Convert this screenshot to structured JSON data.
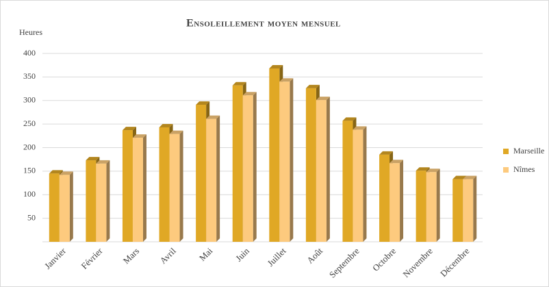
{
  "chart_data": {
    "type": "bar3d",
    "title": "Ensoleillement moyen mensuel",
    "y_label": "Heures",
    "categories": [
      "Janvier",
      "Février",
      "Mars",
      "Avril",
      "Mai",
      "Juin",
      "Juillet",
      "Août",
      "Septembre",
      "Octobre",
      "Novembre",
      "Décembre"
    ],
    "series": [
      {
        "name": "Marseille",
        "color": "#e0a825",
        "values": [
          145,
          173,
          237,
          243,
          291,
          332,
          368,
          326,
          257,
          185,
          151,
          133
        ]
      },
      {
        "name": "Nîmes",
        "color": "#fdca7e",
        "values": [
          142,
          166,
          221,
          229,
          261,
          311,
          340,
          301,
          238,
          167,
          148,
          133
        ]
      }
    ],
    "ylim": [
      0,
      400
    ],
    "yticks": [
      50,
      100,
      150,
      200,
      250,
      300,
      350,
      400
    ],
    "grid": true,
    "legend": "right"
  }
}
